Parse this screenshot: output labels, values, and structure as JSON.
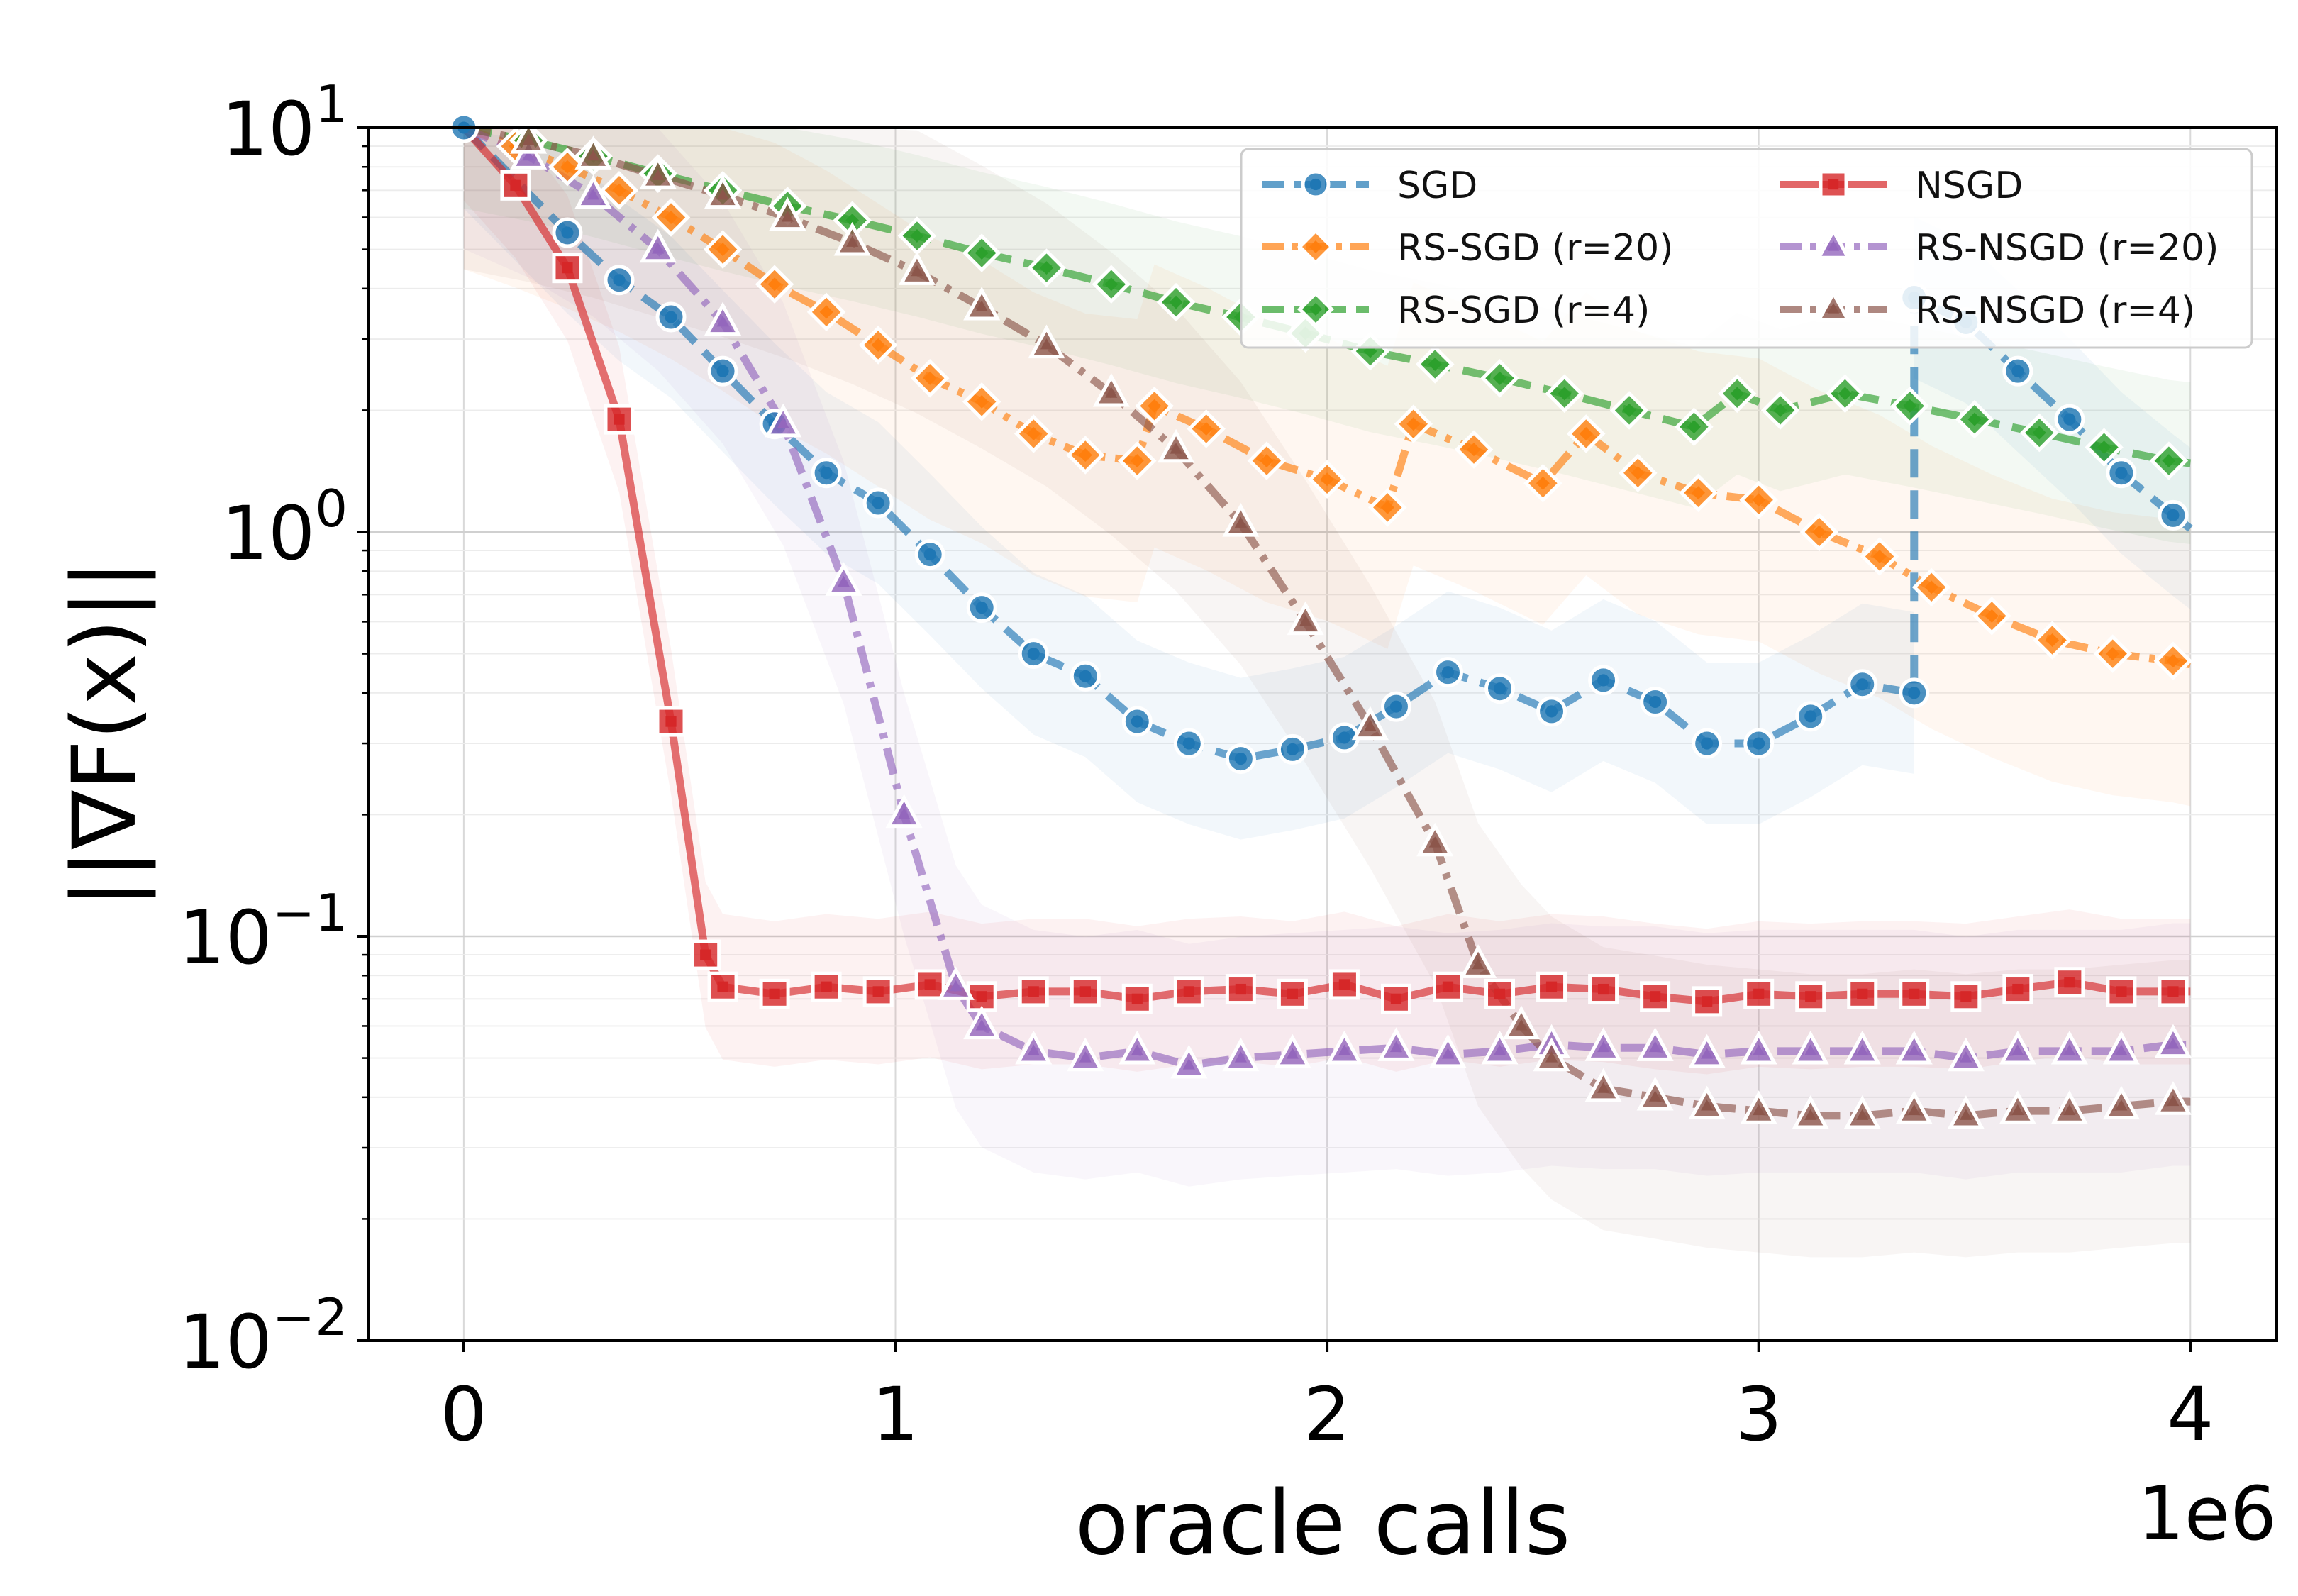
{
  "chart_data": {
    "type": "line",
    "title": "",
    "xlabel": "oracle calls",
    "ylabel": "||∇F(x)||",
    "x_offset_label": "1e6",
    "xlim": [
      -0.22,
      4.2
    ],
    "ylim": [
      0.01,
      10
    ],
    "yscale": "log",
    "grid": true,
    "legend_position": "top-right",
    "x_ticks": [
      {
        "value": 0,
        "label": "0"
      },
      {
        "value": 1,
        "label": "1"
      },
      {
        "value": 2,
        "label": "2"
      },
      {
        "value": 3,
        "label": "3"
      },
      {
        "value": 4,
        "label": "4"
      }
    ],
    "y_ticks": [
      {
        "value": 10,
        "base": "10",
        "exp": "1"
      },
      {
        "value": 1,
        "base": "10",
        "exp": "0"
      },
      {
        "value": 0.1,
        "base": "10",
        "exp": "−1"
      },
      {
        "value": 0.01,
        "base": "10",
        "exp": "−2"
      }
    ],
    "series": [
      {
        "name": "SGD",
        "color": "#1f77b4",
        "marker": "circle",
        "dash": "dashed",
        "x": [
          0,
          0.24,
          0.36,
          0.48,
          0.6,
          0.72,
          0.84,
          0.96,
          1.08,
          1.2,
          1.32,
          1.44,
          1.56,
          1.68,
          1.8,
          1.92,
          2.04,
          2.16,
          2.28,
          2.4,
          2.52,
          2.64,
          2.76,
          2.88,
          3.0,
          3.12,
          3.24,
          3.36,
          3.36,
          3.48,
          3.6,
          3.72,
          3.84,
          3.96,
          4.0
        ],
        "y": [
          10,
          5.5,
          4.2,
          3.4,
          2.5,
          1.85,
          1.4,
          1.18,
          0.88,
          0.65,
          0.5,
          0.44,
          0.34,
          0.3,
          0.275,
          0.29,
          0.31,
          0.37,
          0.45,
          0.41,
          0.36,
          0.43,
          0.38,
          0.3,
          0.3,
          0.35,
          0.42,
          0.4,
          3.8,
          3.3,
          2.5,
          1.9,
          1.4,
          1.1,
          1.02
        ],
        "band": 0.2
      },
      {
        "name": "RS-SGD (r=20)",
        "color": "#ff7f0e",
        "marker": "diamond",
        "dash": "dashdot",
        "x": [
          0,
          0.12,
          0.24,
          0.36,
          0.48,
          0.6,
          0.72,
          0.84,
          0.96,
          1.08,
          1.2,
          1.32,
          1.44,
          1.56,
          1.6,
          1.72,
          1.86,
          2.0,
          2.14,
          2.2,
          2.34,
          2.5,
          2.6,
          2.72,
          2.86,
          3.0,
          3.14,
          3.28,
          3.4,
          3.54,
          3.68,
          3.82,
          3.96,
          4.0
        ],
        "y": [
          10,
          9.0,
          8.0,
          7.0,
          6.0,
          5.0,
          4.1,
          3.5,
          2.9,
          2.4,
          2.1,
          1.75,
          1.55,
          1.5,
          2.05,
          1.8,
          1.5,
          1.35,
          1.15,
          1.85,
          1.6,
          1.32,
          1.75,
          1.4,
          1.25,
          1.2,
          1.0,
          0.87,
          0.73,
          0.62,
          0.54,
          0.5,
          0.48,
          0.47
        ],
        "band": 0.35
      },
      {
        "name": "RS-SGD (r=4)",
        "color": "#2ca02c",
        "marker": "diamond",
        "dash": "dashed",
        "x": [
          0,
          0.15,
          0.3,
          0.45,
          0.6,
          0.75,
          0.9,
          1.05,
          1.2,
          1.35,
          1.5,
          1.65,
          1.8,
          1.95,
          2.1,
          2.25,
          2.4,
          2.55,
          2.7,
          2.85,
          2.95,
          3.05,
          3.2,
          3.35,
          3.5,
          3.65,
          3.8,
          3.95,
          4.0
        ],
        "y": [
          10,
          9.3,
          8.5,
          7.7,
          7.0,
          6.4,
          5.9,
          5.4,
          4.9,
          4.5,
          4.1,
          3.7,
          3.4,
          3.1,
          2.8,
          2.6,
          2.4,
          2.2,
          2.0,
          1.82,
          2.2,
          2.0,
          2.2,
          2.05,
          1.9,
          1.76,
          1.62,
          1.5,
          1.48
        ],
        "band": 0.2
      },
      {
        "name": "NSGD",
        "color": "#d62728",
        "marker": "square",
        "dash": "solid",
        "x": [
          0,
          0.12,
          0.24,
          0.36,
          0.48,
          0.56,
          0.6,
          0.72,
          0.84,
          0.96,
          1.08,
          1.2,
          1.32,
          1.44,
          1.56,
          1.68,
          1.8,
          1.92,
          2.04,
          2.16,
          2.28,
          2.4,
          2.52,
          2.64,
          2.76,
          2.88,
          3.0,
          3.12,
          3.24,
          3.36,
          3.48,
          3.6,
          3.72,
          3.84,
          3.96,
          4.0
        ],
        "y": [
          10,
          7.2,
          4.5,
          1.9,
          0.34,
          0.09,
          0.075,
          0.072,
          0.075,
          0.073,
          0.076,
          0.071,
          0.073,
          0.073,
          0.07,
          0.073,
          0.074,
          0.072,
          0.076,
          0.07,
          0.075,
          0.072,
          0.075,
          0.074,
          0.071,
          0.069,
          0.072,
          0.071,
          0.072,
          0.072,
          0.071,
          0.074,
          0.077,
          0.073,
          0.073,
          0.073
        ],
        "band": 0.18
      },
      {
        "name": "RS-NSGD (r=20)",
        "color": "#9467bd",
        "marker": "triangle",
        "dash": "dashdot",
        "x": [
          0,
          0.15,
          0.3,
          0.45,
          0.6,
          0.74,
          0.88,
          1.02,
          1.14,
          1.2,
          1.32,
          1.44,
          1.56,
          1.68,
          1.8,
          1.92,
          2.04,
          2.16,
          2.28,
          2.4,
          2.52,
          2.64,
          2.76,
          2.88,
          3.0,
          3.12,
          3.24,
          3.36,
          3.48,
          3.6,
          3.72,
          3.84,
          3.96,
          4.0
        ],
        "y": [
          10,
          8.5,
          6.8,
          5.0,
          3.3,
          1.85,
          0.75,
          0.2,
          0.075,
          0.06,
          0.052,
          0.05,
          0.052,
          0.048,
          0.05,
          0.051,
          0.052,
          0.053,
          0.051,
          0.052,
          0.054,
          0.053,
          0.053,
          0.051,
          0.052,
          0.052,
          0.052,
          0.052,
          0.05,
          0.052,
          0.052,
          0.052,
          0.054,
          0.054
        ],
        "band": 0.3
      },
      {
        "name": "RS-NSGD (r=4)",
        "color": "#8c564b",
        "marker": "triangle",
        "dash": "dashdot",
        "x": [
          0,
          0.15,
          0.3,
          0.45,
          0.6,
          0.75,
          0.9,
          1.05,
          1.2,
          1.35,
          1.5,
          1.65,
          1.8,
          1.95,
          2.1,
          2.25,
          2.35,
          2.45,
          2.52,
          2.64,
          2.76,
          2.88,
          3.0,
          3.12,
          3.24,
          3.36,
          3.48,
          3.6,
          3.72,
          3.84,
          3.96,
          4.0
        ],
        "y": [
          10,
          9.3,
          8.5,
          7.6,
          6.8,
          6.0,
          5.2,
          4.4,
          3.6,
          2.9,
          2.2,
          1.6,
          1.05,
          0.6,
          0.33,
          0.17,
          0.085,
          0.06,
          0.05,
          0.042,
          0.04,
          0.038,
          0.037,
          0.036,
          0.036,
          0.037,
          0.036,
          0.037,
          0.037,
          0.038,
          0.039,
          0.039
        ],
        "band": 0.35
      }
    ]
  }
}
